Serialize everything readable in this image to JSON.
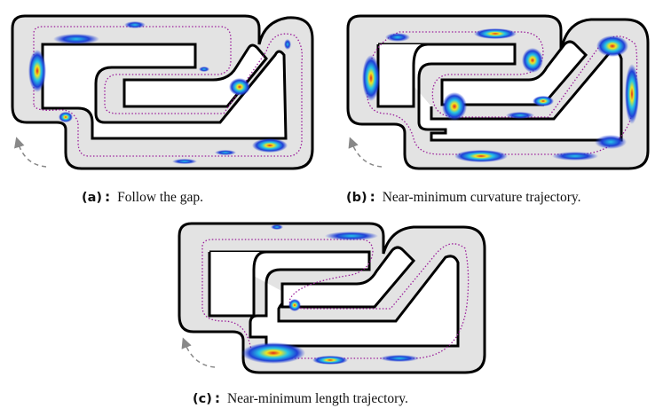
{
  "figure": {
    "panels": [
      {
        "tag": "(a)",
        "sep": ":",
        "text": "Follow the gap."
      },
      {
        "tag": "(b)",
        "sep": ":",
        "text": "Near-minimum curvature trajectory."
      },
      {
        "tag": "(c)",
        "sep": ":",
        "text": "Near-minimum length trajectory."
      }
    ]
  },
  "colors": {
    "track_fill": "#e3e3e3",
    "track_border": "#000000",
    "trajectory": "#9b1f9b",
    "heat_low": "#1f3fd6",
    "heat_mid": "#25c4e6",
    "heat_high": "#f2e51f",
    "heat_peak": "#e0231c",
    "direction_arrow": "#888888"
  }
}
